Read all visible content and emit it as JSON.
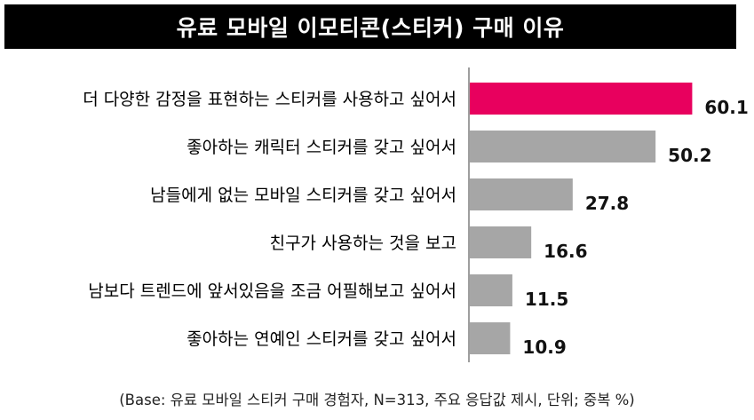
{
  "title": "유료 모바일 이모티콘(스티커) 구매 이유",
  "footnote": "(Base: 유료 모바일 스티커 구매 경험자, N=313, 주요 응답값 제시, 단위; 중복 %)",
  "colors": {
    "highlight": "#e8005e",
    "default": "#a6a6a6",
    "axis": "#7f7f7f"
  },
  "chart_data": {
    "type": "bar",
    "orientation": "horizontal",
    "categories": [
      "더 다양한 감정을 표현하는 스티커를 사용하고 싶어서",
      "좋아하는 캐릭터 스티커를 갖고 싶어서",
      "남들에게 없는 모바일 스티커를 갖고 싶어서",
      "친구가 사용하는 것을 보고",
      "남보다 트렌드에 앞서있음을 조금 어필해보고 싶어서",
      "좋아하는 연예인 스티커를 갖고 싶어서"
    ],
    "values": [
      60.1,
      50.2,
      27.8,
      16.6,
      11.5,
      10.9
    ],
    "value_labels": [
      "60.1",
      "50.2",
      "27.8",
      "16.6",
      "11.5",
      "10.9"
    ],
    "highlight_index": 0,
    "xlim": [
      0,
      72
    ],
    "grid": false,
    "legend": "none"
  }
}
